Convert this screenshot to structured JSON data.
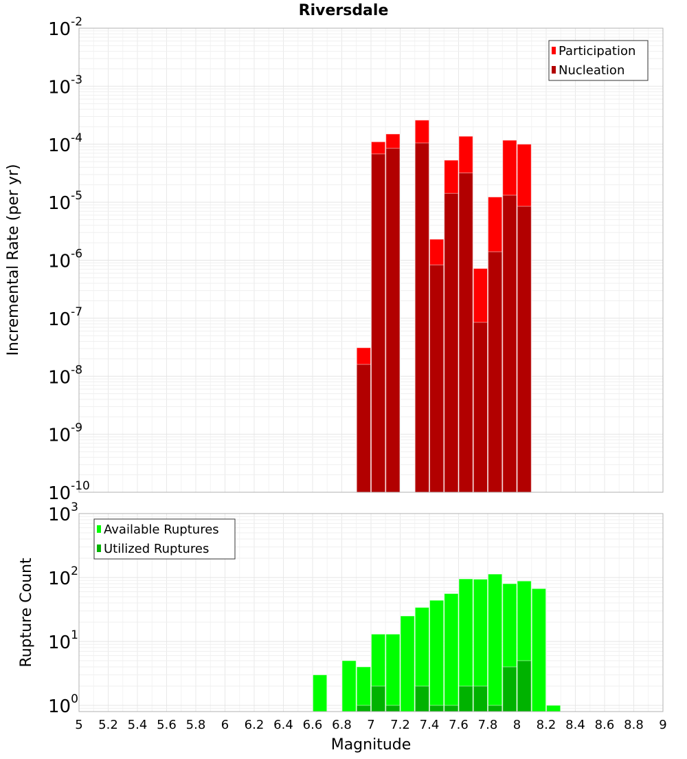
{
  "chart_data": [
    {
      "type": "bar",
      "title": "Riversdale",
      "xlabel": "Magnitude",
      "ylabel": "Incremental Rate (per yr)",
      "yscale": "log",
      "ylim": [
        1e-10,
        0.01
      ],
      "xlim": [
        5,
        9
      ],
      "grid": true,
      "legend_position": "top-right",
      "yticks": [
        {
          "base": "10",
          "exp": "-2",
          "value": 0.01
        },
        {
          "base": "10",
          "exp": "-3",
          "value": 0.001
        },
        {
          "base": "10",
          "exp": "-4",
          "value": 0.0001
        },
        {
          "base": "10",
          "exp": "-5",
          "value": 1e-05
        },
        {
          "base": "10",
          "exp": "-6",
          "value": 1e-06
        },
        {
          "base": "10",
          "exp": "-7",
          "value": 1e-07
        },
        {
          "base": "10",
          "exp": "-8",
          "value": 1e-08
        },
        {
          "base": "10",
          "exp": "-9",
          "value": 1e-09
        },
        {
          "base": "10",
          "exp": "-10",
          "value": 1e-10
        }
      ],
      "x": [
        6.95,
        7.05,
        7.15,
        7.35,
        7.45,
        7.55,
        7.65,
        7.75,
        7.85,
        7.95,
        8.05
      ],
      "series": [
        {
          "name": "Participation",
          "color": "#ff0000",
          "values": [
            3.1e-08,
            0.00011,
            0.00015,
            0.00026,
            2.3e-06,
            5.3e-05,
            0.000137,
            7.2e-07,
            1.23e-05,
            0.000117,
            0.0001
          ]
        },
        {
          "name": "Nucleation",
          "color": "#b20000",
          "values": [
            1.6e-08,
            6.8e-05,
            8.5e-05,
            0.000105,
            8.3e-07,
            1.42e-05,
            3.2e-05,
            8.5e-08,
            1.4e-06,
            1.32e-05,
            8.5e-06
          ]
        }
      ]
    },
    {
      "type": "bar",
      "xlabel": "Magnitude",
      "ylabel": "Rupture Count",
      "yscale": "log",
      "ylim": [
        0.8,
        1000
      ],
      "xlim": [
        5,
        9
      ],
      "grid": true,
      "legend_position": "top-left",
      "yticks": [
        {
          "base": "10",
          "exp": "3",
          "value": 1000
        },
        {
          "base": "10",
          "exp": "2",
          "value": 100
        },
        {
          "base": "10",
          "exp": "1",
          "value": 10
        },
        {
          "base": "10",
          "exp": "0",
          "value": 1
        }
      ],
      "xticks": [
        "5",
        "5.2",
        "5.4",
        "5.6",
        "5.8",
        "6",
        "6.2",
        "6.4",
        "6.6",
        "6.8",
        "7",
        "7.2",
        "7.4",
        "7.6",
        "7.8",
        "8",
        "8.2",
        "8.4",
        "8.6",
        "8.8",
        "9"
      ],
      "x": [
        6.65,
        6.85,
        6.95,
        7.05,
        7.15,
        7.25,
        7.35,
        7.45,
        7.55,
        7.65,
        7.75,
        7.85,
        7.95,
        8.05,
        8.15,
        8.25
      ],
      "series": [
        {
          "name": "Available Ruptures",
          "color": "#00ff00",
          "values": [
            3,
            5,
            4,
            13,
            13,
            25,
            34,
            44,
            56,
            95,
            94,
            113,
            80,
            88,
            67,
            1
          ]
        },
        {
          "name": "Utilized Ruptures",
          "color": "#00b200",
          "values": [
            0,
            0,
            1,
            2,
            1,
            0,
            2,
            1,
            1,
            2,
            2,
            1,
            4,
            5,
            0,
            0
          ]
        }
      ]
    }
  ]
}
